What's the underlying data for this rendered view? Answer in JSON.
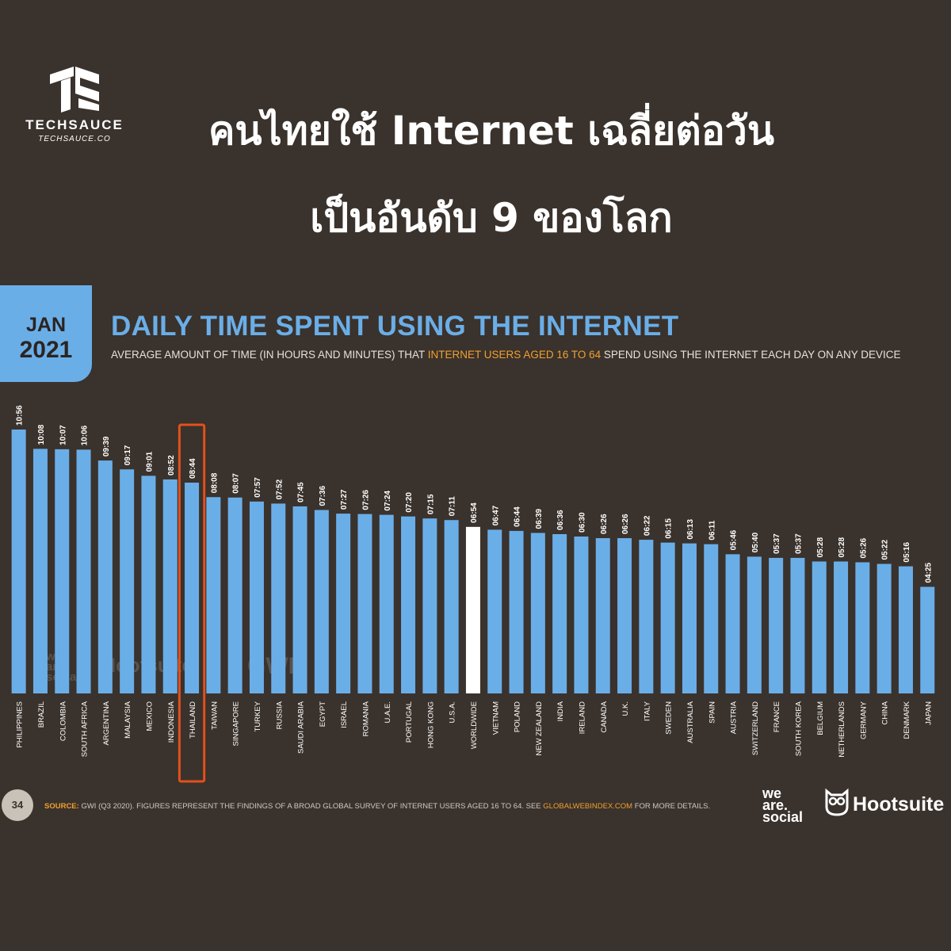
{
  "brand": {
    "name": "TECHSAUCE",
    "url": "TECHSAUCE.CO"
  },
  "headline": {
    "line1": "คนไทยใช้ Internet เฉลี่ยต่อวัน",
    "line2": "เป็นอันดับ 9 ของโลก"
  },
  "badge": {
    "month": "JAN",
    "year": "2021"
  },
  "footer": {
    "page": "34",
    "source_label": "SOURCE:",
    "source_text": " GWI (Q3 2020). FIGURES REPRESENT THE FINDINGS OF A BROAD GLOBAL SURVEY OF INTERNET USERS AGED 16 TO 64. SEE ",
    "source_link": "GLOBALWEBINDEX.COM",
    "source_end": " FOR MORE DETAILS."
  },
  "logos": {
    "we": "we",
    "are": "are.",
    "social": "social",
    "hootsuite": "Hootsuite",
    "gwi": "GWI."
  },
  "colors": {
    "background": "#3a322c",
    "bar": "#6aaee8",
    "highlight_bar": "#ffffff",
    "accent": "#f0a030",
    "highlight_box": "#e2501c"
  },
  "chart_data": {
    "type": "bar",
    "title": "DAILY TIME SPENT USING THE INTERNET",
    "subtitle_pre": "AVERAGE AMOUNT OF TIME (IN HOURS AND MINUTES) THAT ",
    "subtitle_highlight": "INTERNET USERS AGED 16 TO 64",
    "subtitle_post": " SPEND USING THE INTERNET EACH DAY ON ANY DEVICE",
    "categories": [
      "PHILIPPINES",
      "BRAZIL",
      "COLOMBIA",
      "SOUTH AFRICA",
      "ARGENTINA",
      "MALAYSIA",
      "MEXICO",
      "INDONESIA",
      "THAILAND",
      "TAIWAN",
      "SINGAPORE",
      "TURKEY",
      "RUSSIA",
      "SAUDI ARABIA",
      "EGYPT",
      "ISRAEL",
      "ROMANIA",
      "U.A.E.",
      "PORTUGAL",
      "HONG KONG",
      "U.S.A.",
      "WORLDWIDE",
      "VIETNAM",
      "POLAND",
      "NEW ZEALAND",
      "INDIA",
      "IRELAND",
      "CANADA",
      "U.K.",
      "ITALY",
      "SWEDEN",
      "AUSTRALIA",
      "SPAIN",
      "AUSTRIA",
      "SWITZERLAND",
      "FRANCE",
      "SOUTH KOREA",
      "BELGIUM",
      "NETHERLANDS",
      "GERMANY",
      "CHINA",
      "DENMARK",
      "JAPAN"
    ],
    "labels": [
      "10:56",
      "10:08",
      "10:07",
      "10:06",
      "09:39",
      "09:17",
      "09:01",
      "08:52",
      "08:44",
      "08:08",
      "08:07",
      "07:57",
      "07:52",
      "07:45",
      "07:36",
      "07:27",
      "07:26",
      "07:24",
      "07:20",
      "07:15",
      "07:11",
      "06:54",
      "06:47",
      "06:44",
      "06:39",
      "06:36",
      "06:30",
      "06:26",
      "06:26",
      "06:22",
      "06:15",
      "06:13",
      "06:11",
      "05:46",
      "05:40",
      "05:37",
      "05:37",
      "05:28",
      "05:28",
      "05:26",
      "05:22",
      "05:16",
      "04:25"
    ],
    "values_minutes": [
      656,
      608,
      607,
      606,
      579,
      557,
      541,
      532,
      524,
      488,
      487,
      477,
      472,
      465,
      456,
      447,
      446,
      444,
      440,
      435,
      431,
      414,
      407,
      404,
      399,
      396,
      390,
      386,
      386,
      382,
      375,
      373,
      371,
      346,
      340,
      337,
      337,
      328,
      328,
      326,
      322,
      316,
      265
    ],
    "highlighted_bar": "WORLDWIDE",
    "boxed_bar": "THAILAND",
    "ylim": [
      0,
      656
    ]
  }
}
